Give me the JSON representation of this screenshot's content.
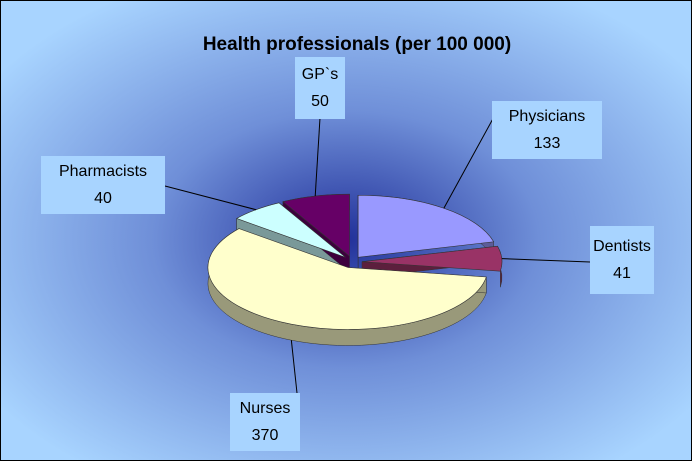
{
  "chart_data": {
    "type": "pie",
    "title": "Health professionals (per 100 000)",
    "categories": [
      "Physicians",
      "Dentists",
      "Nurses",
      "Pharmacists",
      "GP`s"
    ],
    "values": [
      133,
      41,
      370,
      40,
      50
    ],
    "colors": [
      "#9999ff",
      "#993366",
      "#ffffcc",
      "#ccffff",
      "#660066"
    ]
  }
}
